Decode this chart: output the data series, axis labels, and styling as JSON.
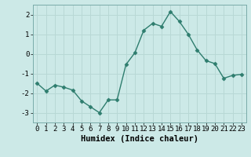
{
  "x": [
    0,
    1,
    2,
    3,
    4,
    5,
    6,
    7,
    8,
    9,
    10,
    11,
    12,
    13,
    14,
    15,
    16,
    17,
    18,
    19,
    20,
    21,
    22,
    23
  ],
  "y": [
    -1.5,
    -1.9,
    -1.6,
    -1.7,
    -1.85,
    -2.4,
    -2.7,
    -3.0,
    -2.35,
    -2.35,
    -0.55,
    0.05,
    1.2,
    1.55,
    1.4,
    2.15,
    1.65,
    1.0,
    0.2,
    -0.35,
    -0.5,
    -1.25,
    -1.1,
    -1.05
  ],
  "line_color": "#2e7d6e",
  "marker": "D",
  "marker_size": 2.5,
  "line_width": 1.0,
  "bg_color": "#cce9e7",
  "grid_color": "#b8d8d5",
  "xlabel": "Humidex (Indice chaleur)",
  "xlim": [
    -0.5,
    23.5
  ],
  "ylim": [
    -3.5,
    2.5
  ],
  "yticks": [
    -3,
    -2,
    -1,
    0,
    1,
    2
  ],
  "xticks": [
    0,
    1,
    2,
    3,
    4,
    5,
    6,
    7,
    8,
    9,
    10,
    11,
    12,
    13,
    14,
    15,
    16,
    17,
    18,
    19,
    20,
    21,
    22,
    23
  ],
  "xlabel_fontsize": 7.5,
  "tick_fontsize": 6.5
}
